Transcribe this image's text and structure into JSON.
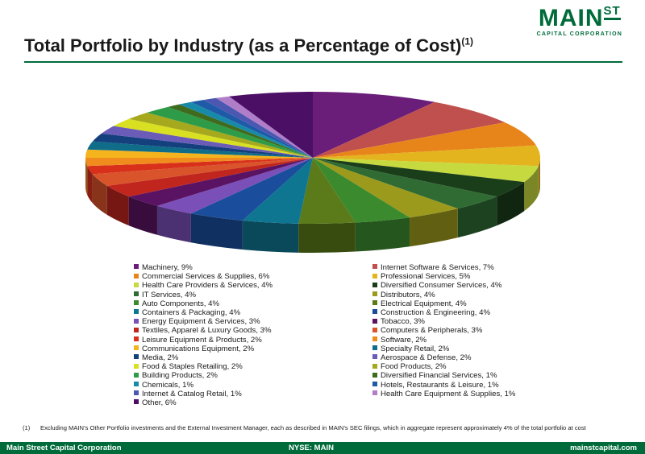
{
  "logo": {
    "main": "MAIN",
    "sup": "ST",
    "sub": "CAPITAL CORPORATION"
  },
  "header": {
    "title": "Total Portfolio by Industry (as a Percentage of Cost)",
    "title_sup": "(1)"
  },
  "chart_data": {
    "type": "pie",
    "title": "Total Portfolio by Industry (as a Percentage of Cost)",
    "unit": "%",
    "slices": [
      {
        "label": "Machinery, 9%",
        "name": "Machinery",
        "value": 9,
        "color": "#6a1e79"
      },
      {
        "label": "Internet Software & Services, 7%",
        "name": "Internet Software & Services",
        "value": 7,
        "color": "#c0504d"
      },
      {
        "label": "Commercial Services & Supplies, 6%",
        "name": "Commercial Services & Supplies",
        "value": 6,
        "color": "#e8851a"
      },
      {
        "label": "Professional Services, 5%",
        "name": "Professional Services",
        "value": 5,
        "color": "#e3b41e"
      },
      {
        "label": "Health Care Providers & Services, 4%",
        "name": "Health Care Providers & Services",
        "value": 4,
        "color": "#c6da3f"
      },
      {
        "label": "Diversified Consumer Services, 4%",
        "name": "Diversified Consumer Services",
        "value": 4,
        "color": "#1a3d1a"
      },
      {
        "label": "IT Services, 4%",
        "name": "IT Services",
        "value": 4,
        "color": "#2f6b33"
      },
      {
        "label": "Distributors, 4%",
        "name": "Distributors",
        "value": 4,
        "color": "#9c9a1c"
      },
      {
        "label": "Auto Components, 4%",
        "name": "Auto Components",
        "value": 4,
        "color": "#3c8a2e"
      },
      {
        "label": "Electrical Equipment, 4%",
        "name": "Electrical Equipment",
        "value": 4,
        "color": "#5b7a1a"
      },
      {
        "label": "Containers & Packaging, 4%",
        "name": "Containers & Packaging",
        "value": 4,
        "color": "#0e7690"
      },
      {
        "label": "Construction & Engineering, 4%",
        "name": "Construction & Engineering",
        "value": 4,
        "color": "#1a4e9c"
      },
      {
        "label": "Energy Equipment & Services, 3%",
        "name": "Energy Equipment & Services",
        "value": 3,
        "color": "#7b4fb8"
      },
      {
        "label": "Tobacco, 3%",
        "name": "Tobacco",
        "value": 3,
        "color": "#5a1363"
      },
      {
        "label": "Textiles, Apparel & Luxury Goods, 3%",
        "name": "Textiles, Apparel & Luxury Goods",
        "value": 3,
        "color": "#c0251e"
      },
      {
        "label": "Computers & Peripherals, 3%",
        "name": "Computers & Peripherals",
        "value": 3,
        "color": "#d9542b"
      },
      {
        "label": "Leisure Equipment & Products, 2%",
        "name": "Leisure Equipment & Products",
        "value": 2,
        "color": "#d8301b"
      },
      {
        "label": "Software, 2%",
        "name": "Software",
        "value": 2,
        "color": "#f08c1e"
      },
      {
        "label": "Communications Equipment, 2%",
        "name": "Communications Equipment",
        "value": 2,
        "color": "#f5b41e"
      },
      {
        "label": "Specialty Retail, 2%",
        "name": "Specialty Retail",
        "value": 2,
        "color": "#0f6d8a"
      },
      {
        "label": "Media, 2%",
        "name": "Media",
        "value": 2,
        "color": "#14407d"
      },
      {
        "label": "Aerospace & Defense, 2%",
        "name": "Aerospace & Defense",
        "value": 2,
        "color": "#6b5cb8"
      },
      {
        "label": "Food & Staples Retailing, 2%",
        "name": "Food & Staples Retailing",
        "value": 2,
        "color": "#d9e021"
      },
      {
        "label": "Food Products, 2%",
        "name": "Food Products",
        "value": 2,
        "color": "#a6a91e"
      },
      {
        "label": "Building Products, 2%",
        "name": "Building Products",
        "value": 2,
        "color": "#2e9b48"
      },
      {
        "label": "Diversified Financial Services, 1%",
        "name": "Diversified Financial Services",
        "value": 1,
        "color": "#3f6b1f"
      },
      {
        "label": "Chemicals, 1%",
        "name": "Chemicals",
        "value": 1,
        "color": "#168aa8"
      },
      {
        "label": "Hotels, Restaurants & Leisure, 1%",
        "name": "Hotels, Restaurants & Leisure",
        "value": 1,
        "color": "#1e5aa8"
      },
      {
        "label": "Internet & Catalog Retail, 1%",
        "name": "Internet & Catalog Retail",
        "value": 1,
        "color": "#4b57b0"
      },
      {
        "label": "Health Care Equipment & Supplies, 1%",
        "name": "Health Care Equipment & Supplies",
        "value": 1,
        "color": "#b07ec9"
      },
      {
        "label": "Other, 6%",
        "name": "Other",
        "value": 6,
        "color": "#4b0f66"
      }
    ],
    "legend_placement": "bottom"
  },
  "footnote": {
    "number": "(1)",
    "text": "Excluding MAIN’s Other Portfolio investments and the External Investment Manager, each as described in MAIN’s SEC filings, which in aggregate represent approximately 4% of the total portfolio at cost"
  },
  "footer": {
    "left": "Main Street Capital Corporation",
    "center": "NYSE: MAIN",
    "right": "mainstcapital.com"
  }
}
